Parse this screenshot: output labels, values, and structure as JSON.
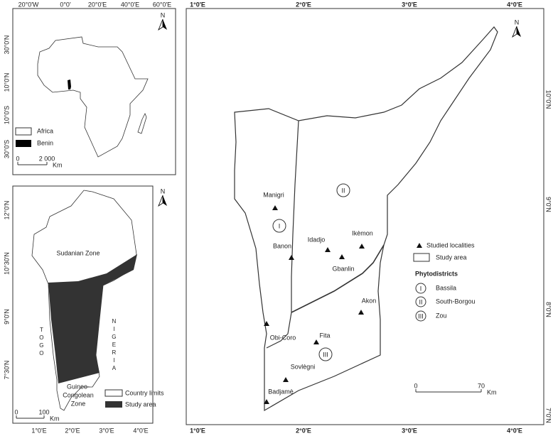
{
  "africa_inset": {
    "north": "N",
    "top_labels": [
      "20°0'W",
      "0°0'",
      "20°0'E",
      "40°0'E",
      "60°0'E"
    ],
    "left_labels": [
      "30°0'N",
      "10°0'N",
      "10°0'S",
      "30°0'S"
    ],
    "legend": [
      "Africa",
      "Benin"
    ],
    "scale": [
      "0",
      "2 000",
      "Km"
    ]
  },
  "benin_inset": {
    "north": "N",
    "left_labels": [
      "12°0'N",
      "10°30'N",
      "9°0'N",
      "7°30'N"
    ],
    "bottom_labels": [
      "1°0'E",
      "2°0'E",
      "3°0'E",
      "4°0'E"
    ],
    "sudanian": "Sudanian Zone",
    "guineo": [
      "Guineo-",
      "Congolean",
      "Zone"
    ],
    "togo": "TOGO",
    "nigeria": "NIGERIA",
    "legend": [
      "Country limits",
      "Study area"
    ],
    "scale": [
      "0",
      "100",
      "Km"
    ]
  },
  "main_map": {
    "north": "N",
    "top_labels": [
      "1°0'E",
      "2°0'E",
      "3°0'E",
      "4°0'E"
    ],
    "bottom_labels": [
      "1°0'E",
      "2°0'E",
      "3°0'E",
      "4°0'E"
    ],
    "right_labels": [
      "10°0'N",
      "9°0'N",
      "8°0'N",
      "7°0'N"
    ],
    "localities": [
      "Manigri",
      "Banon",
      "Idadjo",
      "Ikèmon",
      "Gbanlin",
      "Akon",
      "Fita",
      "Obi-Coro",
      "Sovlègni",
      "Badjamè"
    ],
    "districts_on_map": [
      "I",
      "II",
      "III"
    ],
    "legend": {
      "studied": "Studied localities",
      "study_area": "Study area",
      "phytodistricts": "Phytodistricts",
      "items": [
        {
          "numeral": "I",
          "name": "Bassila"
        },
        {
          "numeral": "II",
          "name": "South-Borgou"
        },
        {
          "numeral": "III",
          "name": "Zou"
        }
      ]
    },
    "scale": [
      "0",
      "70",
      "Km"
    ]
  }
}
